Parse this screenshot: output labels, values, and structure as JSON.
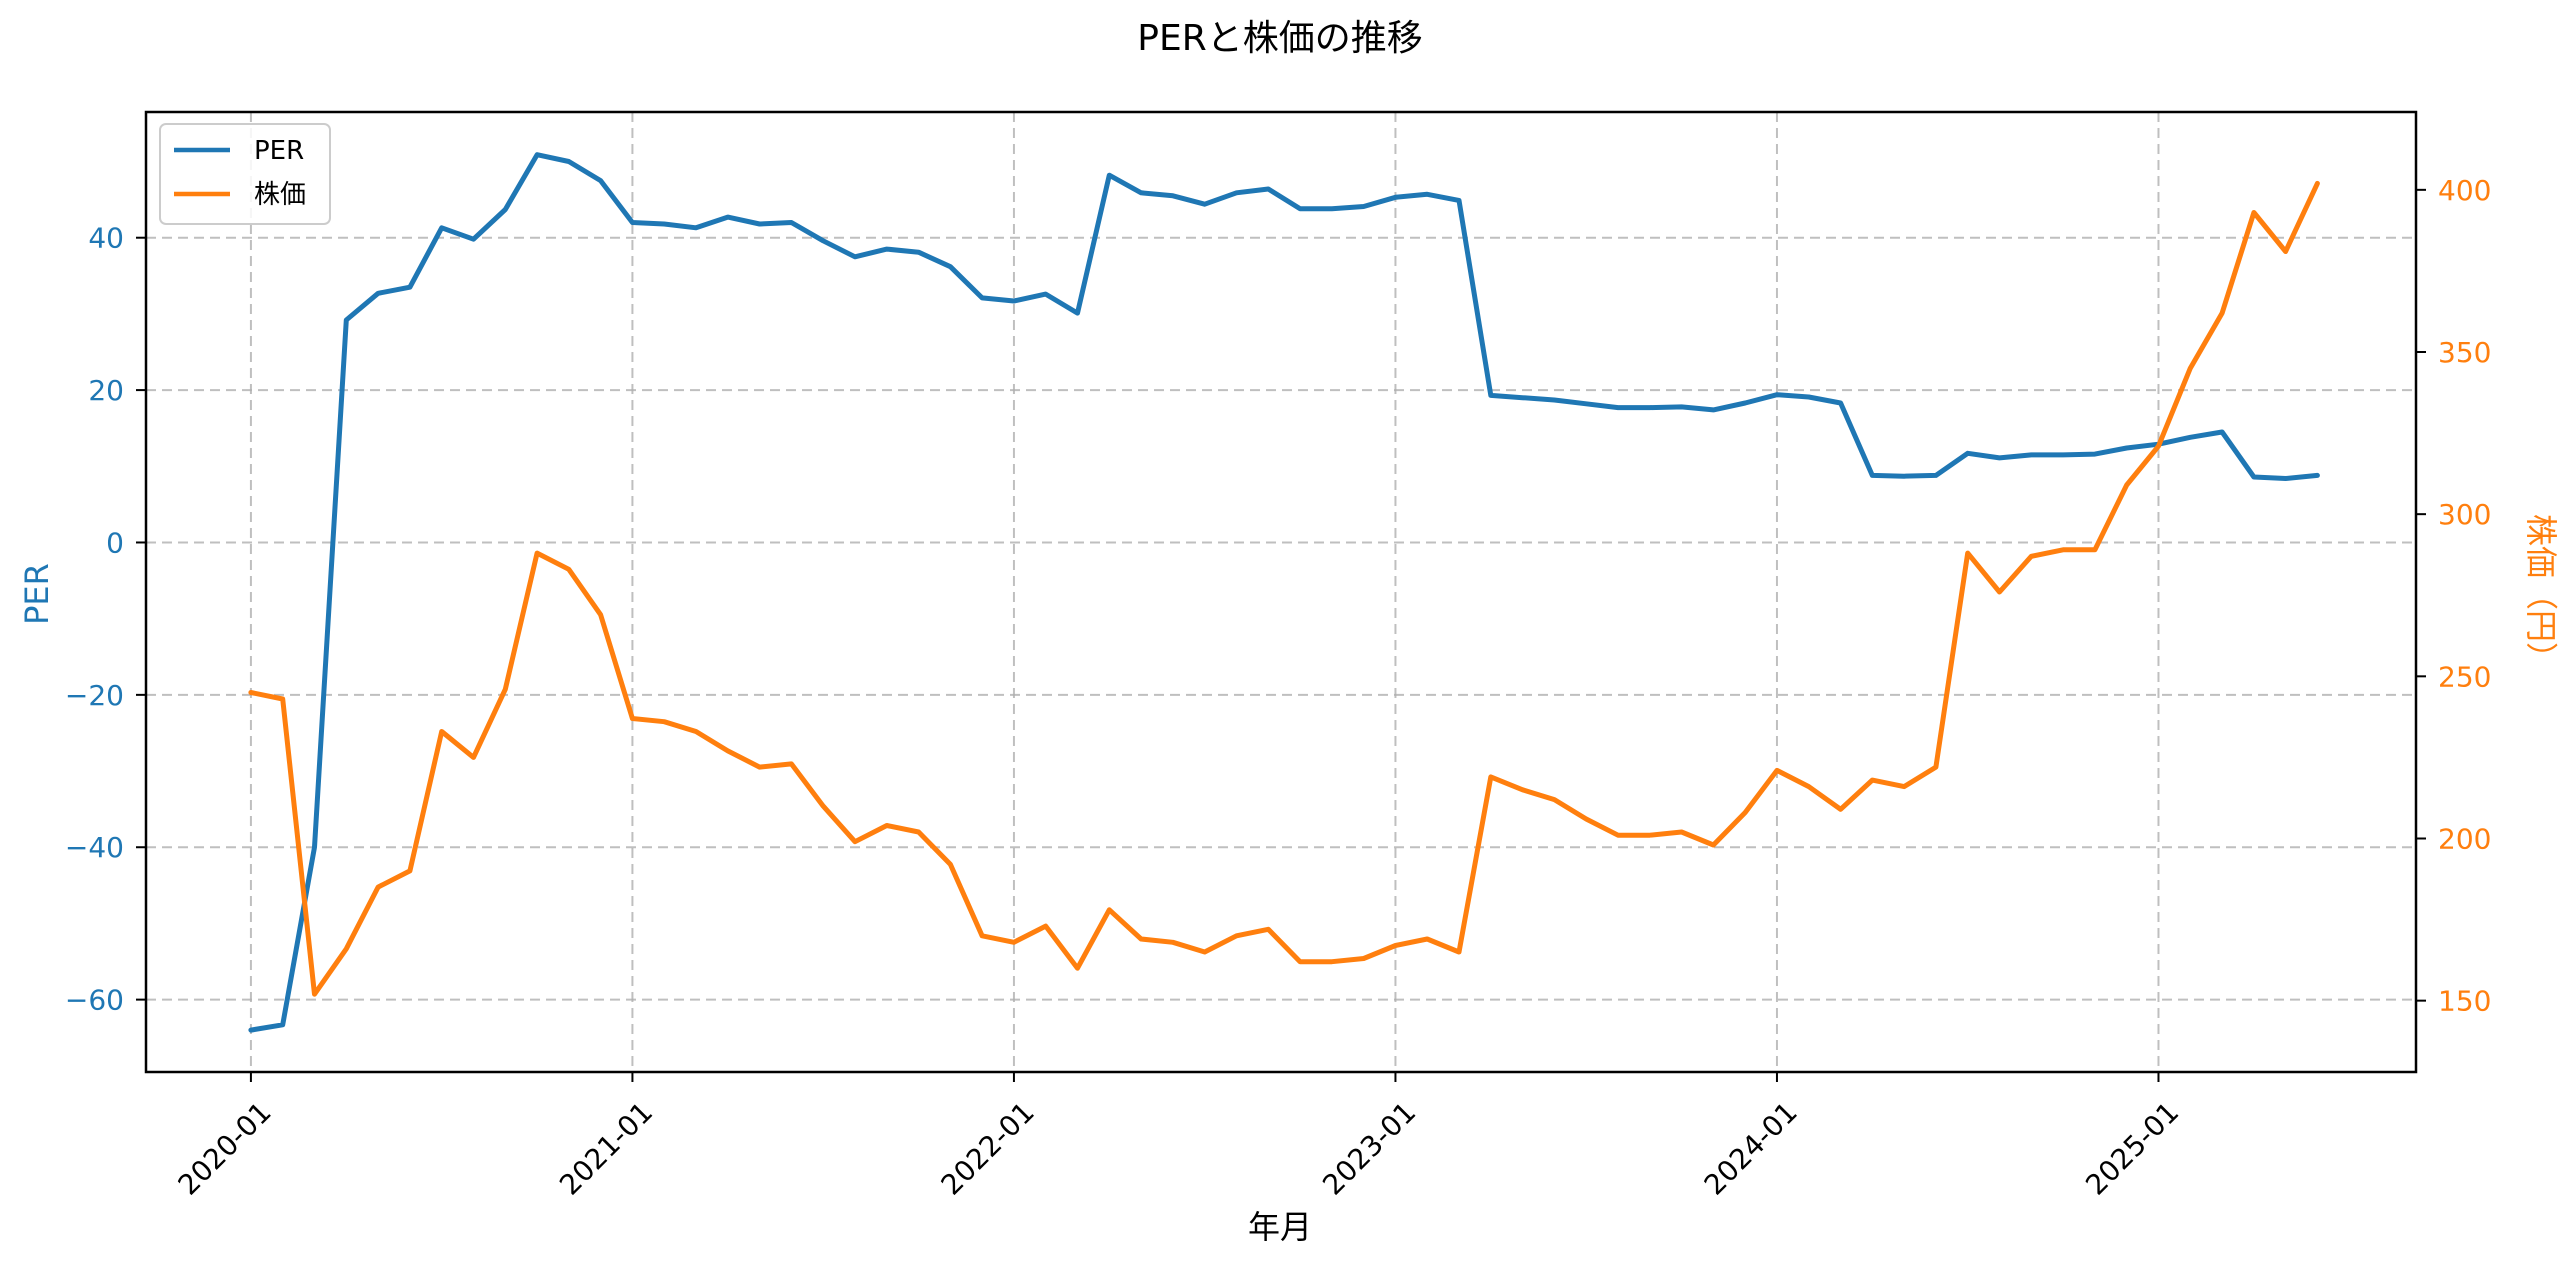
{
  "chart_data": {
    "type": "line",
    "title": "PERと株価の推移",
    "xlabel": "年月",
    "ylabel_left": "PER",
    "ylabel_right": "株価（円）",
    "x_tick_labels": [
      "2020-01",
      "2021-01",
      "2022-01",
      "2023-01",
      "2024-01",
      "2025-01"
    ],
    "x_tick_months": [
      0,
      12,
      24,
      36,
      48,
      60
    ],
    "x_range_months": [
      -3.3,
      68.1
    ],
    "y_left_range": [
      -69.5,
      56.5
    ],
    "y_left_ticks": [
      -60,
      -40,
      -20,
      0,
      20,
      40
    ],
    "y_right_range": [
      128,
      424
    ],
    "y_right_ticks": [
      150,
      200,
      250,
      300,
      350,
      400
    ],
    "grid": true,
    "legend_position": "top-left",
    "colors": {
      "per": "#1f77b4",
      "price": "#ff7f0e"
    },
    "series": [
      {
        "name": "PER",
        "axis": "left",
        "values": [
          -64,
          -63.3,
          -40,
          29.2,
          32.7,
          33.5,
          41.3,
          39.8,
          43.7,
          50.9,
          50,
          47.5,
          42,
          41.8,
          41.3,
          42.7,
          41.8,
          42,
          39.6,
          37.5,
          38.5,
          38.1,
          36.2,
          32.1,
          31.7,
          32.6,
          30.1,
          48.2,
          45.9,
          45.5,
          44.4,
          45.9,
          46.4,
          43.8,
          43.8,
          44.1,
          45.3,
          45.7,
          44.9,
          19.3,
          19,
          18.7,
          18.2,
          17.7,
          17.7,
          17.8,
          17.4,
          18.3,
          19.4,
          19.1,
          18.3,
          8.8,
          8.7,
          8.8,
          11.7,
          11.1,
          11.5,
          11.5,
          11.6,
          12.4,
          12.9,
          13.8,
          14.5,
          8.6,
          8.4,
          8.8
        ]
      },
      {
        "name": "株価",
        "axis": "right",
        "values": [
          245,
          243,
          152,
          166,
          185,
          190,
          233,
          225,
          246,
          288,
          283,
          269,
          237,
          236,
          233,
          227,
          222,
          223,
          210,
          199,
          204,
          202,
          192,
          170,
          168,
          173,
          160,
          178,
          169,
          168,
          165,
          170,
          172,
          162,
          162,
          163,
          167,
          169,
          165,
          219,
          215,
          212,
          206,
          201,
          201,
          202,
          198,
          208,
          221,
          216,
          209,
          218,
          216,
          222,
          288,
          276,
          287,
          289,
          289,
          309,
          321,
          345,
          362,
          393,
          381,
          402
        ]
      }
    ]
  }
}
